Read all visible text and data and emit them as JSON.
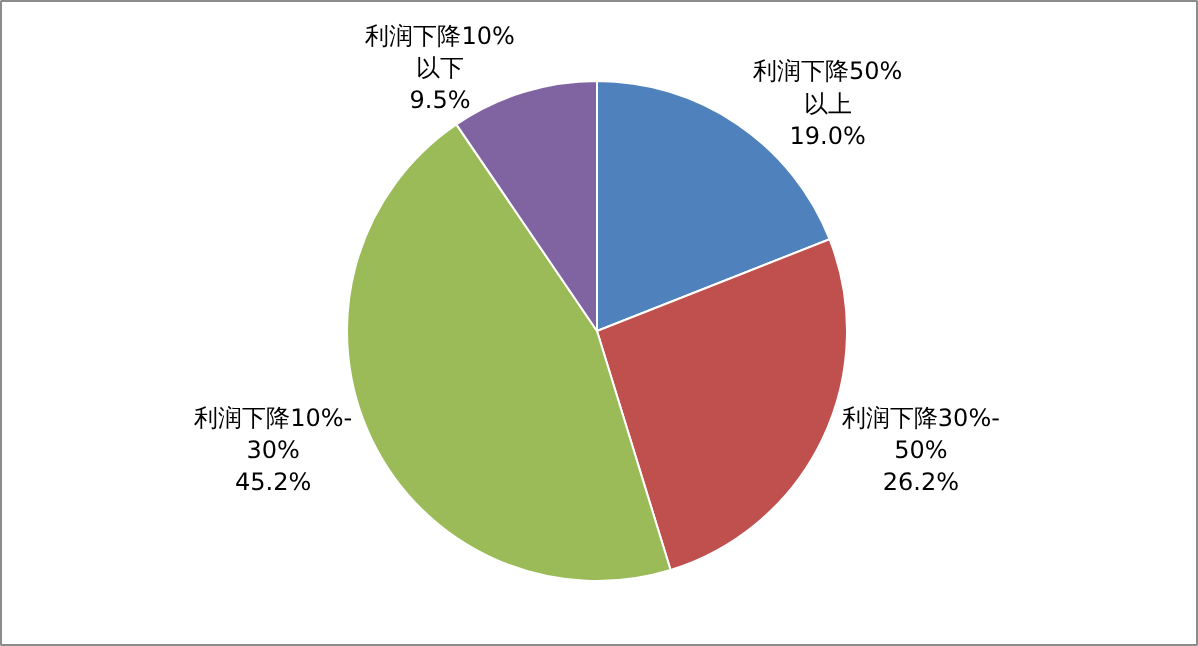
{
  "chart_data": {
    "type": "pie",
    "categories": [
      "利润下降50%\n以上",
      "利润下降30%-\n50%",
      "利润下降10%-\n30%",
      "利润下降10%\n以下"
    ],
    "values": [
      19.0,
      26.2,
      45.2,
      9.5
    ],
    "colors": [
      "#4f81bd",
      "#c0504d",
      "#9bbb59",
      "#8064a2"
    ],
    "value_labels": [
      "19.0%",
      "26.2%",
      "45.2%",
      "9.5%"
    ]
  }
}
